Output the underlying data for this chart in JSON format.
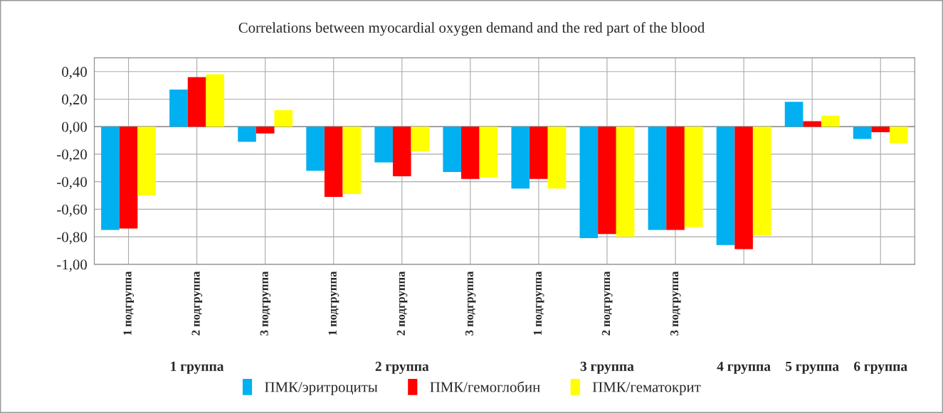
{
  "chart_data": {
    "type": "bar",
    "title": "Correlations between myocardial oxygen demand and the red part of the blood",
    "categories": [
      "1 подгруппа",
      "2 подгруппа",
      "3 подгруппа",
      "1 подгруппа",
      "2 подгруппа",
      "3 подгруппа",
      "1 подгруппа",
      "2 подгруппа",
      "3 подгруппа",
      null,
      null,
      null
    ],
    "series": [
      {
        "name": "ПМК/эритроциты",
        "color": "#00b0f0",
        "values": [
          -0.75,
          0.27,
          -0.11,
          -0.32,
          -0.26,
          -0.33,
          -0.45,
          -0.81,
          -0.75,
          -0.86,
          0.18,
          -0.09
        ]
      },
      {
        "name": "ПМК/гемоглобин",
        "color": "#ff0000",
        "values": [
          -0.74,
          0.36,
          -0.05,
          -0.51,
          -0.36,
          -0.38,
          -0.38,
          -0.78,
          -0.75,
          -0.89,
          0.04,
          -0.04
        ]
      },
      {
        "name": "ПМК/гематокрит",
        "color": "#ffff00",
        "values": [
          -0.5,
          0.38,
          0.12,
          -0.49,
          -0.18,
          -0.37,
          -0.45,
          -0.8,
          -0.73,
          -0.79,
          0.08,
          -0.12
        ]
      }
    ],
    "annotations": [
      "1 группа",
      "2 группа",
      "3 группа",
      "4 группа",
      "5 группа",
      "6 группа"
    ],
    "ylim": [
      -1.0,
      0.5
    ],
    "yticks": [
      {
        "value": -1.0,
        "label": "-1,00"
      },
      {
        "value": -0.8,
        "label": "-0,80"
      },
      {
        "value": -0.6,
        "label": "-0,60"
      },
      {
        "value": -0.4,
        "label": "-0,40"
      },
      {
        "value": -0.2,
        "label": "-0,20"
      },
      {
        "value": 0.0,
        "label": "0,00"
      },
      {
        "value": 0.2,
        "label": "0,20"
      },
      {
        "value": 0.4,
        "label": "0,40"
      }
    ],
    "grid": true,
    "legend": "bottom"
  }
}
